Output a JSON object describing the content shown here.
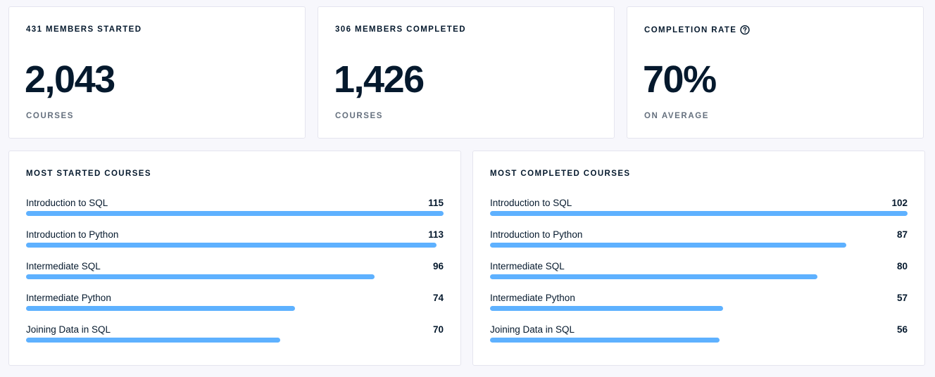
{
  "stats": [
    {
      "label": "431 MEMBERS STARTED",
      "value": "2,043",
      "sublabel": "COURSES"
    },
    {
      "label": "306 MEMBERS COMPLETED",
      "value": "1,426",
      "sublabel": "COURSES"
    },
    {
      "label": "COMPLETION RATE",
      "value": "70%",
      "sublabel": "ON AVERAGE",
      "icon": "help-circle-icon"
    }
  ],
  "most_started": {
    "title": "MOST STARTED COURSES",
    "max": 115,
    "items": [
      {
        "name": "Introduction to SQL",
        "count": 115
      },
      {
        "name": "Introduction to Python",
        "count": 113
      },
      {
        "name": "Intermediate SQL",
        "count": 96
      },
      {
        "name": "Intermediate Python",
        "count": 74
      },
      {
        "name": "Joining Data in SQL",
        "count": 70
      }
    ]
  },
  "most_completed": {
    "title": "MOST COMPLETED COURSES",
    "max": 102,
    "items": [
      {
        "name": "Introduction to SQL",
        "count": 102
      },
      {
        "name": "Introduction to Python",
        "count": 87
      },
      {
        "name": "Intermediate SQL",
        "count": 80
      },
      {
        "name": "Intermediate Python",
        "count": 57
      },
      {
        "name": "Joining Data in SQL",
        "count": 56
      }
    ]
  },
  "colors": {
    "bar": "#5eb1ff",
    "text": "#05192d",
    "muted": "#65707e",
    "background": "#f7f7fc",
    "card": "#ffffff"
  }
}
